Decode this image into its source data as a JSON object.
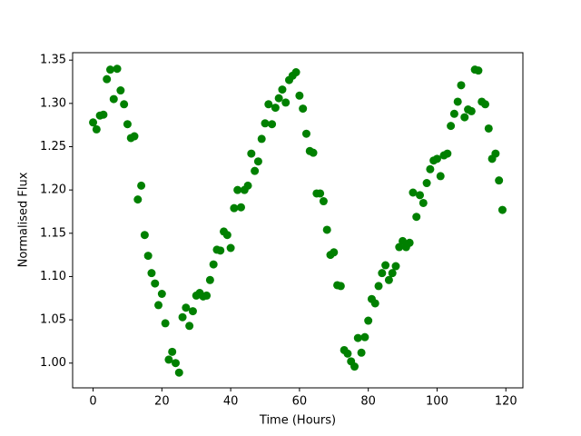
{
  "chart_data": {
    "type": "scatter",
    "xlabel": "Time (Hours)",
    "ylabel": "Normalised Flux",
    "color": "#008000",
    "x": [
      0,
      1,
      2,
      3,
      4,
      5,
      6,
      7,
      8,
      9,
      10,
      11,
      12,
      13,
      14,
      15,
      16,
      17,
      18,
      19,
      20,
      21,
      22,
      23,
      24,
      25,
      26,
      27,
      28,
      29,
      30,
      31,
      32,
      33,
      34,
      35,
      36,
      37,
      38,
      39,
      40,
      41,
      42,
      43,
      44,
      45,
      46,
      47,
      48,
      49,
      50,
      51,
      52,
      53,
      54,
      55,
      56,
      57,
      58,
      59,
      60,
      61,
      62,
      63,
      64,
      65,
      66,
      67,
      68,
      69,
      70,
      71,
      72,
      73,
      74,
      75,
      76,
      77,
      78,
      79,
      80,
      81,
      82,
      83,
      84,
      85,
      86,
      87,
      88,
      89,
      90,
      91,
      92,
      93,
      94,
      95,
      96,
      97,
      98,
      99,
      100,
      101,
      102,
      103,
      104,
      105,
      106,
      107,
      108,
      109,
      110,
      111,
      112,
      113,
      114,
      115,
      116,
      117,
      118,
      119
    ],
    "values": [
      1.278,
      1.27,
      1.286,
      1.287,
      1.328,
      1.339,
      1.305,
      1.34,
      1.315,
      1.299,
      1.276,
      1.26,
      1.262,
      1.189,
      1.205,
      1.148,
      1.124,
      1.104,
      1.092,
      1.067,
      1.08,
      1.046,
      1.004,
      1.013,
      1.0,
      0.989,
      1.053,
      1.064,
      1.043,
      1.06,
      1.078,
      1.081,
      1.077,
      1.078,
      1.096,
      1.114,
      1.131,
      1.13,
      1.152,
      1.148,
      1.133,
      1.179,
      1.2,
      1.18,
      1.2,
      1.205,
      1.242,
      1.222,
      1.233,
      1.259,
      1.277,
      1.299,
      1.276,
      1.295,
      1.306,
      1.316,
      1.301,
      1.327,
      1.332,
      1.336,
      1.309,
      1.294,
      1.265,
      1.245,
      1.243,
      1.196,
      1.196,
      1.187,
      1.154,
      1.125,
      1.128,
      1.09,
      1.089,
      1.015,
      1.011,
      1.002,
      0.996,
      1.029,
      1.012,
      1.03,
      1.049,
      1.074,
      1.069,
      1.089,
      1.104,
      1.113,
      1.096,
      1.104,
      1.112,
      1.134,
      1.141,
      1.134,
      1.139,
      1.197,
      1.169,
      1.194,
      1.185,
      1.208,
      1.224,
      1.234,
      1.236,
      1.216,
      1.24,
      1.242,
      1.274,
      1.288,
      1.302,
      1.321,
      1.284,
      1.293,
      1.291,
      1.339,
      1.338,
      1.302,
      1.299,
      1.271,
      1.236,
      1.242,
      1.211,
      1.177
    ],
    "xlim": [
      -5.95,
      124.95
    ],
    "xticks": [
      0,
      20,
      40,
      60,
      80,
      100,
      120
    ],
    "ylim": [
      0.9714,
      1.3586
    ],
    "yticks": [
      {
        "value": 1.0,
        "label": "1.00"
      },
      {
        "value": 1.05,
        "label": "1.05"
      },
      {
        "value": 1.1,
        "label": "1.10"
      },
      {
        "value": 1.15,
        "label": "1.15"
      },
      {
        "value": 1.2,
        "label": "1.20"
      },
      {
        "value": 1.25,
        "label": "1.25"
      },
      {
        "value": 1.3,
        "label": "1.30"
      },
      {
        "value": 1.35,
        "label": "1.35"
      }
    ],
    "grid": false
  }
}
